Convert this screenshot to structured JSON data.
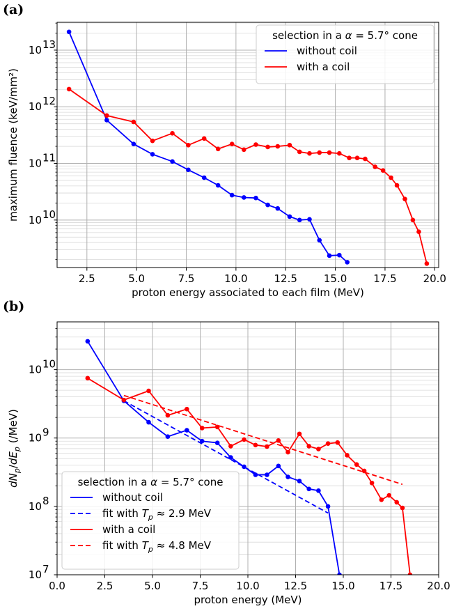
{
  "figure": {
    "panels": [
      "(a)",
      "(b)"
    ]
  },
  "colors": {
    "without_coil": "#0000ff",
    "with_coil": "#ff0000"
  },
  "chart_data": [
    {
      "type": "line",
      "panel": "(a)",
      "title": "",
      "xlabel": "proton energy associated to each film (MeV)",
      "ylabel": "maximum fluence (keV/mm²)",
      "xlim": [
        1.0,
        20.2
      ],
      "ylim": [
        1450000000.0,
        31000000000000.0
      ],
      "yscale": "log",
      "x_ticks": [
        2.5,
        5.0,
        7.5,
        10.0,
        12.5,
        15.0,
        17.5,
        20.0
      ],
      "x_tick_labels": [
        "2.5",
        "5.0",
        "7.5",
        "10.0",
        "12.5",
        "15.0",
        "17.5",
        "20.0"
      ],
      "y_ticks": [
        10000000000.0,
        100000000000.0,
        1000000000000.0,
        10000000000000.0
      ],
      "y_tick_labels": [
        [
          "10",
          "10"
        ],
        [
          "10",
          "11"
        ],
        [
          "10",
          "12"
        ],
        [
          "10",
          "13"
        ]
      ],
      "grid": true,
      "legend_title": "selection in a α = 5.7° cone",
      "legend_position": "upper right",
      "series": [
        {
          "name": "without coil",
          "color": "#0000ff",
          "style": "solid",
          "markers": true,
          "x": [
            1.6,
            3.5,
            4.85,
            5.8,
            6.8,
            7.6,
            8.4,
            9.1,
            9.8,
            10.4,
            11.0,
            11.6,
            12.1,
            12.7,
            13.2,
            13.7,
            14.2,
            14.7,
            15.2,
            15.6
          ],
          "y": [
            21000000000000.0,
            580000000000.0,
            220000000000.0,
            145000000000.0,
            108000000000.0,
            77000000000.0,
            56000000000.0,
            41000000000.0,
            27500000000.0,
            25000000000.0,
            24500000000.0,
            18500000000.0,
            16000000000.0,
            11500000000.0,
            10000000000.0,
            10300000000.0,
            4400000000.0,
            2350000000.0,
            2400000000.0,
            1800000000.0
          ]
        },
        {
          "name": "with a coil",
          "color": "#ff0000",
          "style": "solid",
          "markers": true,
          "x": [
            1.6,
            3.5,
            4.85,
            5.8,
            6.8,
            7.6,
            8.4,
            9.1,
            9.8,
            10.4,
            11.0,
            11.6,
            12.1,
            12.7,
            13.2,
            13.7,
            14.2,
            14.7,
            15.2,
            15.7,
            16.1,
            16.5,
            17.0,
            17.4,
            17.8,
            18.1,
            18.5,
            18.9,
            19.2,
            19.6
          ],
          "y": [
            2050000000000.0,
            700000000000.0,
            540000000000.0,
            250000000000.0,
            340000000000.0,
            210000000000.0,
            275000000000.0,
            180000000000.0,
            220000000000.0,
            175000000000.0,
            215000000000.0,
            195000000000.0,
            200000000000.0,
            210000000000.0,
            160000000000.0,
            150000000000.0,
            155000000000.0,
            155000000000.0,
            150000000000.0,
            125000000000.0,
            125000000000.0,
            120000000000.0,
            87000000000.0,
            75000000000.0,
            56000000000.0,
            41000000000.0,
            23500000000.0,
            10000000000.0,
            6200000000.0,
            1700000000.0
          ]
        }
      ]
    },
    {
      "type": "line",
      "panel": "(b)",
      "title": "",
      "xlabel": "proton energy (MeV)",
      "ylabel": "dN_p/dE_p (/MeV)",
      "xlim": [
        0.0,
        20.0
      ],
      "ylim": [
        10000000.0,
        50000000000.0
      ],
      "yscale": "log",
      "x_ticks": [
        0.0,
        2.5,
        5.0,
        7.5,
        10.0,
        12.5,
        15.0,
        17.5,
        20.0
      ],
      "x_tick_labels": [
        "0.0",
        "2.5",
        "5.0",
        "7.5",
        "10.0",
        "12.5",
        "15.0",
        "17.5",
        "20.0"
      ],
      "y_ticks": [
        10000000.0,
        100000000.0,
        1000000000.0,
        10000000000.0
      ],
      "y_tick_labels": [
        [
          "10",
          "7"
        ],
        [
          "10",
          "8"
        ],
        [
          "10",
          "9"
        ],
        [
          "10",
          "10"
        ]
      ],
      "grid": true,
      "legend_title": "selection in a α = 5.7° cone",
      "legend_position": "lower left",
      "series": [
        {
          "name": "without coil",
          "color": "#0000ff",
          "style": "solid",
          "markers": true,
          "x": [
            1.6,
            3.5,
            4.8,
            5.8,
            6.8,
            7.6,
            8.4,
            9.1,
            9.8,
            10.4,
            11.0,
            11.6,
            12.1,
            12.7,
            13.2,
            13.7,
            14.2,
            14.8
          ],
          "y": [
            26000000000.0,
            3500000000.0,
            1700000000.0,
            1050000000.0,
            1300000000.0,
            900000000.0,
            850000000.0,
            520000000.0,
            380000000.0,
            290000000.0,
            290000000.0,
            390000000.0,
            270000000.0,
            235000000.0,
            180000000.0,
            170000000.0,
            100000000.0,
            10000000.0
          ]
        },
        {
          "name": "fit with T_p ≈ 2.9 MeV",
          "color": "#0000ff",
          "style": "dashed",
          "markers": false,
          "x": [
            3.5,
            14.2
          ],
          "y": [
            3500000000.0,
            80000000.0
          ]
        },
        {
          "name": "with a coil",
          "color": "#ff0000",
          "style": "solid",
          "markers": true,
          "x": [
            1.6,
            3.5,
            4.8,
            5.8,
            6.8,
            7.6,
            8.4,
            9.1,
            9.8,
            10.4,
            11.0,
            11.6,
            12.1,
            12.7,
            13.2,
            13.7,
            14.2,
            14.7,
            15.2,
            15.7,
            16.1,
            16.5,
            17.0,
            17.4,
            17.8,
            18.1,
            18.5
          ],
          "y": [
            7500000000.0,
            3600000000.0,
            4900000000.0,
            2150000000.0,
            2650000000.0,
            1400000000.0,
            1450000000.0,
            760000000.0,
            950000000.0,
            790000000.0,
            750000000.0,
            920000000.0,
            620000000.0,
            1150000000.0,
            760000000.0,
            690000000.0,
            830000000.0,
            860000000.0,
            560000000.0,
            410000000.0,
            330000000.0,
            220000000.0,
            125000000.0,
            145000000.0,
            115000000.0,
            95000000.0,
            10000000.0
          ]
        },
        {
          "name": "fit with T_p ≈ 4.8 MeV",
          "color": "#ff0000",
          "style": "dashed",
          "markers": false,
          "x": [
            3.5,
            18.1
          ],
          "y": [
            4200000000.0,
            210000000.0
          ]
        }
      ]
    }
  ]
}
